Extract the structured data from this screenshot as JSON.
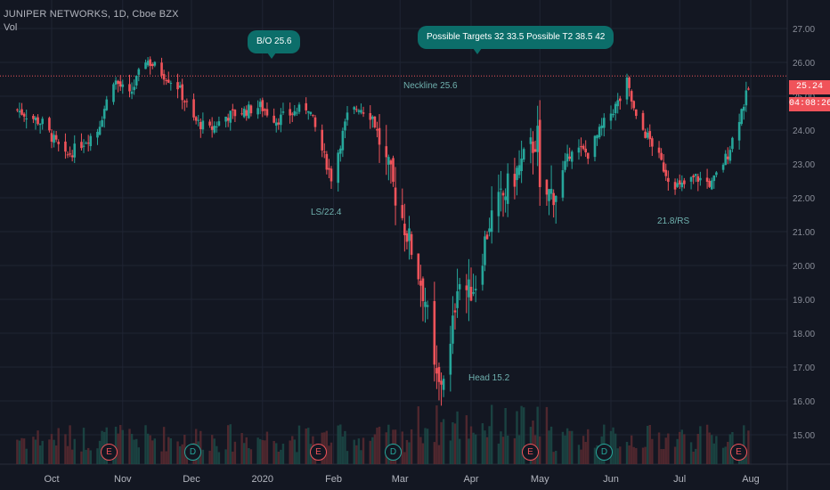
{
  "header": {
    "symbol": "JUNIPER NETWORKS, 1D, Cboe BZX",
    "volume_label": "Vol"
  },
  "annotations": {
    "breakout": "B/O  25.6",
    "targets": "Possible Targets  32  33.5     Possible T2  38.5  42",
    "neckline": "Neckline 25.6",
    "left_shoulder": "LS/22.4",
    "head": "Head  15.2",
    "right_shoulder": "21.8/RS"
  },
  "price_axis": {
    "last_price": "25.24",
    "countdown": "04:08:26"
  },
  "events": [
    {
      "letter": "E",
      "kind": "earnings",
      "near": "Oct"
    },
    {
      "letter": "D",
      "kind": "dividend",
      "near": "Dec"
    },
    {
      "letter": "E",
      "kind": "earnings",
      "near": "Feb"
    },
    {
      "letter": "D",
      "kind": "dividend",
      "near": "Mar"
    },
    {
      "letter": "E",
      "kind": "earnings",
      "near": "May"
    },
    {
      "letter": "D",
      "kind": "dividend",
      "near": "Jun"
    },
    {
      "letter": "E",
      "kind": "earnings",
      "near": "Aug"
    }
  ],
  "colors": {
    "background": "#131722",
    "up": "#26a69a",
    "down": "#f0535a",
    "grid": "#1f2433",
    "annotation": "#0c6e6a"
  },
  "chart_data": {
    "type": "candlestick",
    "title": "JUNIPER NETWORKS, 1D, Cboe BZX",
    "x_ticks": [
      "Oct",
      "Nov",
      "Dec",
      "2020",
      "Feb",
      "Mar",
      "Apr",
      "May",
      "Jun",
      "Jul",
      "Aug"
    ],
    "y_ticks": [
      15,
      16,
      17,
      18,
      19,
      20,
      21,
      22,
      23,
      24,
      25,
      26,
      27
    ],
    "y_tick_labels": [
      "15.00",
      "16.00",
      "17.00",
      "18.00",
      "19.00",
      "20.00",
      "21.00",
      "22.00",
      "23.00",
      "24.00",
      "25.00",
      "26.00",
      "27.00"
    ],
    "ylim": [
      14.5,
      27.5
    ],
    "last_price": 25.24,
    "neckline": 25.6,
    "grid": true,
    "key_levels": {
      "breakout": 25.6,
      "left_shoulder": 22.4,
      "head": 15.2,
      "right_shoulder": 21.8,
      "targets": [
        32,
        33.5
      ],
      "targets_2": [
        38.5,
        42
      ]
    },
    "price_path": [
      [
        "2019-09-16",
        24.6
      ],
      [
        "2019-09-27",
        24.2
      ],
      [
        "2019-10-07",
        23.2
      ],
      [
        "2019-10-14",
        23.6
      ],
      [
        "2019-10-21",
        24.0
      ],
      [
        "2019-10-28",
        25.5
      ],
      [
        "2019-11-04",
        25.0
      ],
      [
        "2019-11-11",
        26.1
      ],
      [
        "2019-11-18",
        25.7
      ],
      [
        "2019-11-25",
        25.3
      ],
      [
        "2019-12-02",
        24.3
      ],
      [
        "2019-12-09",
        24.0
      ],
      [
        "2019-12-16",
        24.4
      ],
      [
        "2019-12-31",
        24.7
      ],
      [
        "2020-01-07",
        24.3
      ],
      [
        "2020-01-14",
        24.5
      ],
      [
        "2020-01-21",
        24.7
      ],
      [
        "2020-01-27",
        23.4
      ],
      [
        "2020-01-31",
        22.6
      ],
      [
        "2020-02-07",
        24.4
      ],
      [
        "2020-02-12",
        24.7
      ],
      [
        "2020-02-18",
        24.4
      ],
      [
        "2020-02-24",
        23.0
      ],
      [
        "2020-03-03",
        21.2
      ],
      [
        "2020-03-09",
        19.8
      ],
      [
        "2020-03-12",
        19.0
      ],
      [
        "2020-03-16",
        16.8
      ],
      [
        "2020-03-18",
        16.4
      ],
      [
        "2020-03-23",
        17.5
      ],
      [
        "2020-03-26",
        19.6
      ],
      [
        "2020-03-31",
        19.2
      ],
      [
        "2020-04-03",
        19.5
      ],
      [
        "2020-04-09",
        21.3
      ],
      [
        "2020-04-17",
        22.3
      ],
      [
        "2020-04-24",
        23.1
      ],
      [
        "2020-04-30",
        23.8
      ],
      [
        "2020-05-01",
        22.0
      ],
      [
        "2020-05-08",
        22.2
      ],
      [
        "2020-05-15",
        23.5
      ],
      [
        "2020-05-22",
        23.3
      ],
      [
        "2020-05-29",
        24.2
      ],
      [
        "2020-06-05",
        24.9
      ],
      [
        "2020-06-08",
        25.4
      ],
      [
        "2020-06-12",
        24.3
      ],
      [
        "2020-06-19",
        23.6
      ],
      [
        "2020-06-26",
        22.6
      ],
      [
        "2020-07-01",
        22.3
      ],
      [
        "2020-07-08",
        22.6
      ],
      [
        "2020-07-15",
        22.4
      ],
      [
        "2020-07-22",
        23.3
      ],
      [
        "2020-07-28",
        24.6
      ],
      [
        "2020-07-31",
        25.2
      ]
    ]
  }
}
